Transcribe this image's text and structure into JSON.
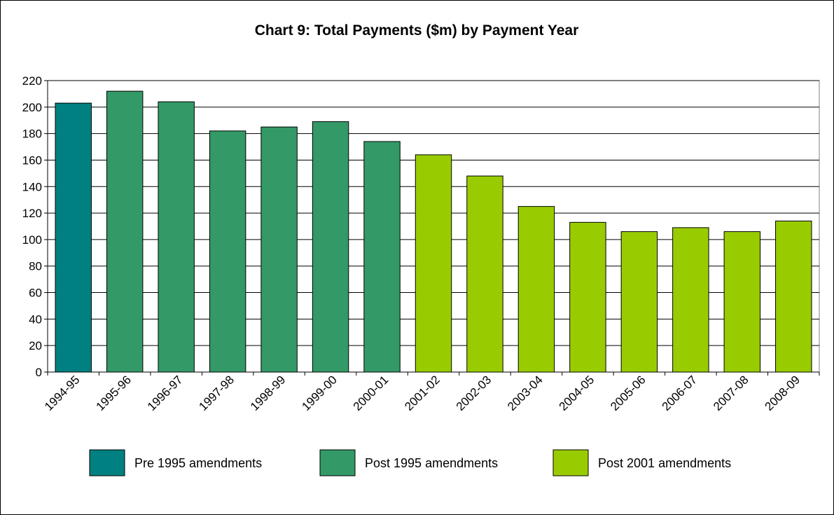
{
  "chart_data": {
    "type": "bar",
    "title": "Chart 9: Total Payments ($m) by Payment Year",
    "xlabel": "",
    "ylabel": "",
    "ylim": [
      0,
      220
    ],
    "yticks": [
      0,
      20,
      40,
      60,
      80,
      100,
      120,
      140,
      160,
      180,
      200,
      220
    ],
    "grid": true,
    "legend_position": "bottom",
    "categories": [
      "1994-95",
      "1995-96",
      "1996-97",
      "1997-98",
      "1998-99",
      "1999-00",
      "2000-01",
      "2001-02",
      "2002-03",
      "2003-04",
      "2004-05",
      "2005-06",
      "2006-07",
      "2007-08",
      "2008-09"
    ],
    "values": [
      203,
      212,
      204,
      182,
      185,
      189,
      174,
      164,
      148,
      125,
      113,
      106,
      109,
      106,
      114
    ],
    "groups": [
      {
        "name": "Pre 1995 amendments",
        "color": "#008080",
        "indices": [
          0
        ]
      },
      {
        "name": "Post 1995 amendments",
        "color": "#339966",
        "indices": [
          1,
          2,
          3,
          4,
          5,
          6
        ]
      },
      {
        "name": "Post 2001 amendments",
        "color": "#99CC00",
        "indices": [
          7,
          8,
          9,
          10,
          11,
          12,
          13,
          14
        ]
      }
    ]
  }
}
